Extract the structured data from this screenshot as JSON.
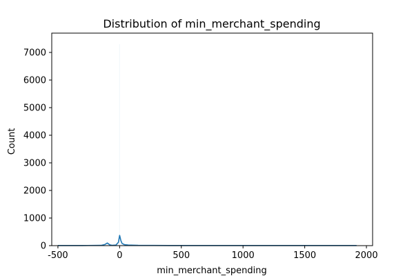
{
  "chart_data": {
    "type": "histogram",
    "title": "Distribution of min_merchant_spending",
    "xlabel": "min_merchant_spending",
    "ylabel": "Count",
    "xlim": [
      -550,
      2050
    ],
    "ylim": [
      0,
      7700
    ],
    "x_ticks": [
      -500,
      0,
      500,
      1000,
      1500,
      2000
    ],
    "y_ticks": [
      0,
      1000,
      2000,
      3000,
      4000,
      5000,
      6000,
      7000
    ],
    "grid": false,
    "legend": "none",
    "bar_color": "#1f77b4",
    "bins": [
      {
        "x0": -500,
        "x1": -100,
        "count": 5
      },
      {
        "x0": -100,
        "x1": -3,
        "count": 60
      },
      {
        "x0": -3,
        "x1": 3,
        "count": 7300
      },
      {
        "x0": 3,
        "x1": 100,
        "count": 50
      },
      {
        "x0": 100,
        "x1": 1920,
        "count": 5
      }
    ],
    "kde": {
      "color": "#1f77b4",
      "x": [
        -500,
        -300,
        -150,
        -120,
        -100,
        -80,
        -60,
        -30,
        -10,
        0,
        10,
        20,
        40,
        70,
        150,
        400,
        800,
        1200,
        1600,
        1920
      ],
      "y": [
        5,
        5,
        10,
        40,
        95,
        30,
        10,
        20,
        120,
        370,
        180,
        80,
        35,
        20,
        10,
        5,
        5,
        5,
        5,
        5
      ]
    }
  }
}
